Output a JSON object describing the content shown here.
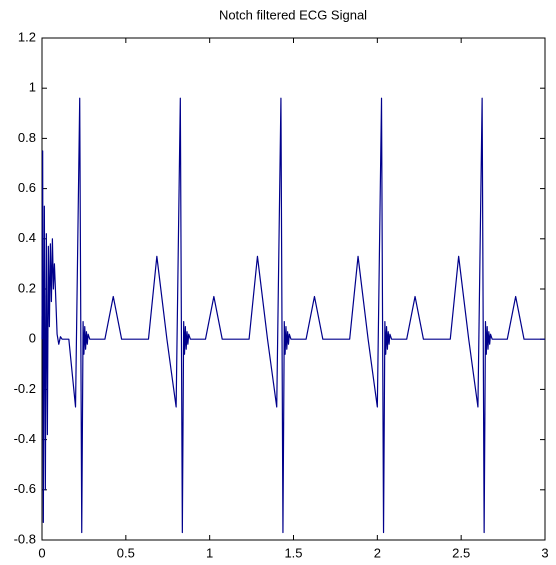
{
  "chart_data": {
    "type": "line",
    "title": "Notch filtered ECG Signal",
    "x": [
      0,
      0.004,
      0.008,
      0.014,
      0.02,
      0.026,
      0.032,
      0.038,
      0.044,
      0.05,
      0.056,
      0.062,
      0.068,
      0.074,
      0.08,
      0.09,
      0.1,
      0.11,
      0.12,
      0.16,
      0.2,
      0.225,
      0.237,
      0.245,
      0.25,
      0.255,
      0.26,
      0.265,
      0.27,
      0.275,
      0.285,
      0.375,
      0.425,
      0.475,
      0.635,
      0.685,
      0.745,
      0.8,
      0.825,
      0.837,
      0.845,
      0.85,
      0.855,
      0.86,
      0.865,
      0.87,
      0.875,
      0.885,
      0.975,
      1.025,
      1.075,
      1.235,
      1.285,
      1.345,
      1.4,
      1.425,
      1.437,
      1.445,
      1.45,
      1.455,
      1.46,
      1.465,
      1.47,
      1.475,
      1.485,
      1.575,
      1.625,
      1.675,
      1.835,
      1.885,
      1.945,
      2.0,
      2.025,
      2.037,
      2.045,
      2.05,
      2.055,
      2.06,
      2.065,
      2.07,
      2.075,
      2.085,
      2.175,
      2.225,
      2.275,
      2.435,
      2.485,
      2.545,
      2.6,
      2.625,
      2.637,
      2.645,
      2.65,
      2.655,
      2.66,
      2.665,
      2.67,
      2.675,
      2.685,
      2.775,
      2.825,
      2.875,
      3.0
    ],
    "series": [
      {
        "color": "#00008b",
        "values": [
          0,
          0.75,
          -0.73,
          0.53,
          -0.6,
          0.42,
          -0.38,
          0.37,
          0.05,
          0.38,
          0.15,
          0.4,
          0.2,
          0.3,
          0.2,
          0.02,
          -0.02,
          0.01,
          0,
          0,
          -0.27,
          0.96,
          -0.77,
          0.07,
          -0.06,
          0.05,
          -0.04,
          0.03,
          -0.02,
          0.02,
          0,
          0,
          0.17,
          0,
          0,
          0.33,
          0,
          -0.27,
          0.96,
          -0.77,
          0.07,
          -0.06,
          0.05,
          -0.04,
          0.03,
          -0.02,
          0.02,
          0,
          0,
          0.17,
          0,
          0,
          0.33,
          0,
          -0.27,
          0.96,
          -0.77,
          0.07,
          -0.06,
          0.05,
          -0.04,
          0.03,
          -0.02,
          0.02,
          0,
          0,
          0.17,
          0,
          0,
          0.33,
          0,
          -0.27,
          0.96,
          -0.77,
          0.07,
          -0.06,
          0.05,
          -0.04,
          0.03,
          -0.02,
          0.02,
          0,
          0,
          0.17,
          0,
          0,
          0.33,
          0,
          -0.27,
          0.96,
          -0.77,
          0.07,
          -0.06,
          0.05,
          -0.04,
          0.03,
          -0.02,
          0.02,
          0,
          0,
          0.17,
          0,
          0
        ]
      }
    ],
    "xlim": [
      0,
      3
    ],
    "xticks": [
      0,
      0.5,
      1,
      1.5,
      2,
      2.5,
      3
    ],
    "ylim": [
      -0.8,
      1.2
    ],
    "yticks": [
      -0.8,
      -0.6,
      -0.4,
      -0.2,
      0,
      0.2,
      0.4,
      0.6,
      0.8,
      1,
      1.2
    ],
    "grid": false
  }
}
